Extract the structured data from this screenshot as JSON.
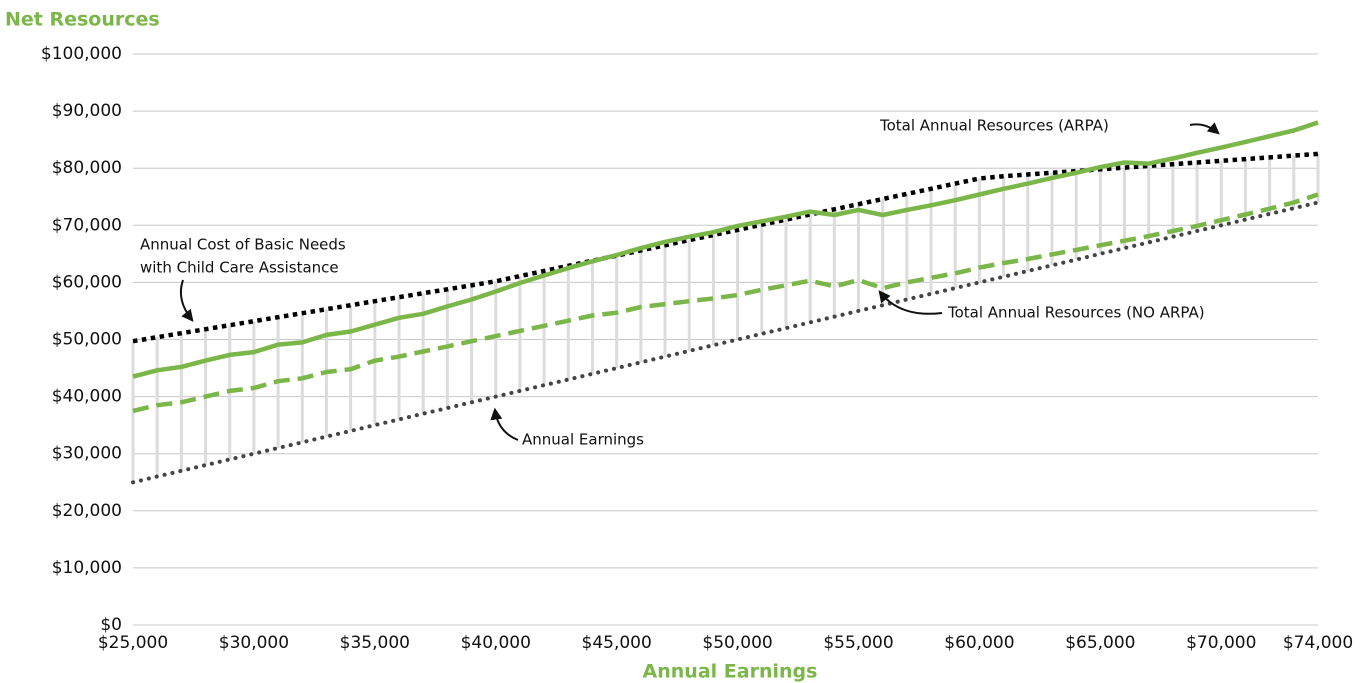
{
  "chart_data": {
    "type": "line",
    "title": "Net Resources",
    "xlabel": "Annual Earnings",
    "title_color": "#7ab648",
    "x": [
      25000,
      26000,
      27000,
      28000,
      29000,
      30000,
      31000,
      32000,
      33000,
      34000,
      35000,
      36000,
      37000,
      38000,
      39000,
      40000,
      41000,
      42000,
      43000,
      44000,
      45000,
      46000,
      47000,
      48000,
      49000,
      50000,
      51000,
      52000,
      53000,
      54000,
      55000,
      56000,
      57000,
      58000,
      59000,
      60000,
      61000,
      62000,
      63000,
      64000,
      65000,
      66000,
      67000,
      68000,
      69000,
      70000,
      71000,
      72000,
      73000,
      74000
    ],
    "series": [
      {
        "name": "Annual Earnings",
        "color": "#444444",
        "style": "dotted",
        "values": [
          25000,
          26000,
          27000,
          28000,
          29000,
          30000,
          31000,
          32000,
          33000,
          34000,
          35000,
          36000,
          37000,
          38000,
          39000,
          40000,
          41000,
          42000,
          43000,
          44000,
          45000,
          46000,
          47000,
          48000,
          49000,
          50000,
          51000,
          52000,
          53000,
          54000,
          55000,
          56000,
          57000,
          58000,
          59000,
          60000,
          61000,
          62000,
          63000,
          64000,
          65000,
          66000,
          67000,
          68000,
          69000,
          70000,
          71000,
          72000,
          73000,
          74000
        ]
      },
      {
        "name": "Annual Cost of Basic Needs with Child Care Assistance",
        "color": "#000000",
        "style": "dotted-bold",
        "values": [
          49700,
          50400,
          51100,
          51800,
          52500,
          53200,
          53900,
          54600,
          55300,
          56000,
          56700,
          57400,
          58100,
          58800,
          59500,
          60200,
          61100,
          62000,
          62900,
          63800,
          64700,
          65600,
          66500,
          67400,
          68300,
          69200,
          70100,
          71000,
          71900,
          72800,
          73700,
          74600,
          75500,
          76400,
          77300,
          78200,
          78600,
          78900,
          79200,
          79500,
          79800,
          80100,
          80400,
          80700,
          81000,
          81300,
          81600,
          81900,
          82200,
          82500
        ]
      },
      {
        "name": "Total Annual Resources (NO ARPA)",
        "color": "#7ab648",
        "style": "dashed",
        "values": [
          37500,
          38500,
          39000,
          40000,
          41000,
          41500,
          42700,
          43200,
          44300,
          44800,
          46300,
          47000,
          47900,
          48800,
          49700,
          50600,
          51500,
          52400,
          53300,
          54200,
          54700,
          55700,
          56200,
          56700,
          57200,
          57800,
          58700,
          59500,
          60300,
          59300,
          60400,
          59000,
          60000,
          60800,
          61600,
          62600,
          63400,
          64100,
          64900,
          65700,
          66500,
          67300,
          68100,
          69000,
          69900,
          70900,
          71900,
          72900,
          74000,
          75400
        ]
      },
      {
        "name": "Total Annual Resources (ARPA)",
        "color": "#7ab648",
        "style": "solid",
        "values": [
          43500,
          44600,
          45200,
          46300,
          47300,
          47800,
          49100,
          49500,
          50800,
          51400,
          52600,
          53800,
          54500,
          55800,
          57000,
          58400,
          59900,
          61200,
          62500,
          63700,
          64800,
          66000,
          67100,
          68000,
          68800,
          69900,
          70700,
          71500,
          72400,
          71800,
          72700,
          71800,
          72700,
          73500,
          74400,
          75400,
          76400,
          77300,
          78300,
          79200,
          80200,
          81000,
          80800,
          81700,
          82700,
          83600,
          84600,
          85600,
          86600,
          88000
        ]
      }
    ],
    "annotations": [
      "Total Annual Resources (ARPA)",
      "Annual Cost of Basic Needs",
      "with Child Care Assistance",
      "Total Annual Resources (NO ARPA)",
      "Annual Earnings"
    ],
    "xlim": [
      25000,
      74000
    ],
    "xticks": [
      {
        "value": 25000,
        "label": "$25,000"
      },
      {
        "value": 30000,
        "label": "$30,000"
      },
      {
        "value": 35000,
        "label": "$35,000"
      },
      {
        "value": 40000,
        "label": "$40,000"
      },
      {
        "value": 45000,
        "label": "$45,000"
      },
      {
        "value": 50000,
        "label": "$50,000"
      },
      {
        "value": 55000,
        "label": "$55,000"
      },
      {
        "value": 60000,
        "label": "$60,000"
      },
      {
        "value": 65000,
        "label": "$65,000"
      },
      {
        "value": 70000,
        "label": "$70,000"
      },
      {
        "value": 74000,
        "label": "$74,000"
      }
    ],
    "ylim": [
      0,
      100000
    ],
    "yticks": [
      {
        "value": 0,
        "label": "$0"
      },
      {
        "value": 10000,
        "label": "$10,000"
      },
      {
        "value": 20000,
        "label": "$20,000"
      },
      {
        "value": 30000,
        "label": "$30,000"
      },
      {
        "value": 40000,
        "label": "$40,000"
      },
      {
        "value": 50000,
        "label": "$50,000"
      },
      {
        "value": 60000,
        "label": "$60,000"
      },
      {
        "value": 70000,
        "label": "$70,000"
      },
      {
        "value": 80000,
        "label": "$80,000"
      },
      {
        "value": 90000,
        "label": "$90,000"
      },
      {
        "value": 100000,
        "label": "$100,000"
      }
    ],
    "grid": true,
    "legend": false
  }
}
